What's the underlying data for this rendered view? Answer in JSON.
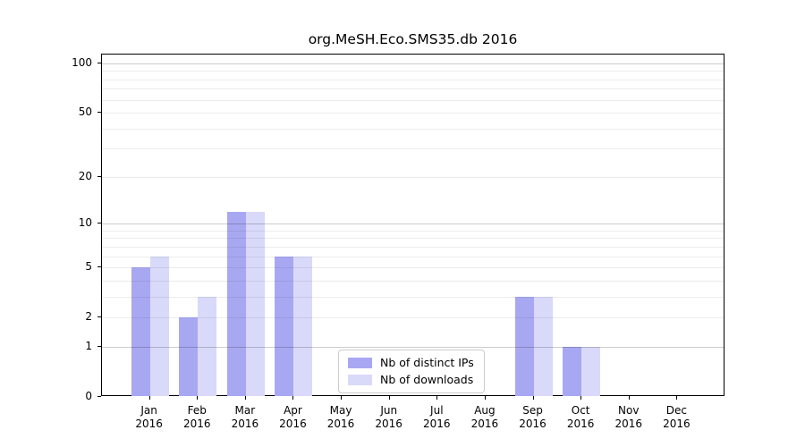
{
  "chart_data": {
    "type": "bar",
    "title": "org.MeSH.Eco.SMS35.db 2016",
    "categories": [
      "Jan",
      "Feb",
      "Mar",
      "Apr",
      "May",
      "Jun",
      "Jul",
      "Aug",
      "Sep",
      "Oct",
      "Nov",
      "Dec"
    ],
    "x_tick_second_line": "2016",
    "series": [
      {
        "name": "Nb of distinct IPs",
        "color": "#a8a8f2",
        "values": [
          5,
          2,
          12,
          6,
          0,
          0,
          0,
          0,
          3,
          1,
          0,
          0
        ]
      },
      {
        "name": "Nb of downloads",
        "color": "#d9d9f9",
        "values": [
          6,
          3,
          12,
          6,
          0,
          0,
          0,
          0,
          3,
          1,
          0,
          0
        ]
      }
    ],
    "xlabel": "",
    "ylabel": "",
    "y_scale": "log1p",
    "ylim": [
      0,
      113
    ],
    "y_ticks": [
      0,
      1,
      2,
      5,
      10,
      20,
      50,
      100
    ],
    "grid": true,
    "grid_major_values": [
      1,
      10,
      100
    ],
    "grid_minor_values": [
      2,
      3,
      4,
      5,
      6,
      7,
      8,
      9,
      20,
      30,
      40,
      50,
      60,
      70,
      80,
      90
    ],
    "legend_position": "lower center",
    "axis_color": "#000000",
    "grid_major_color": "#cccccc",
    "grid_minor_color": "#ececec"
  }
}
